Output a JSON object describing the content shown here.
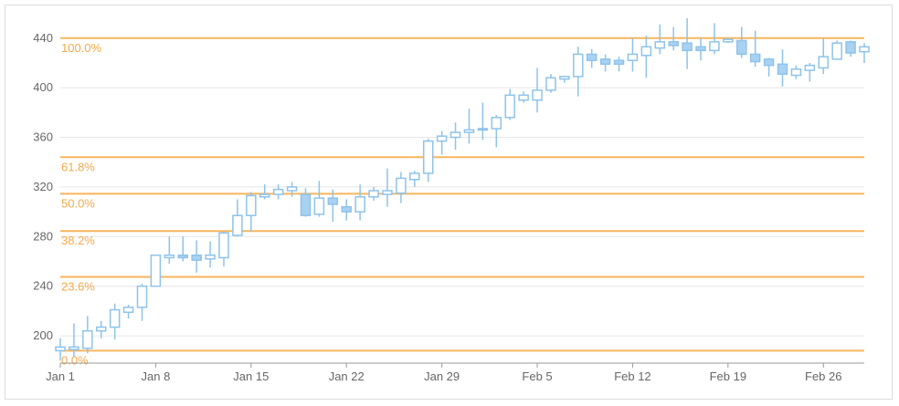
{
  "chart_data": {
    "type": "candlestick",
    "title": "",
    "xlabel": "",
    "ylabel": "",
    "ylim": [
      178,
      456
    ],
    "yticks": [
      "200",
      "240",
      "280",
      "320",
      "360",
      "400",
      "440"
    ],
    "xticks": [
      {
        "day": 1,
        "label": "Jan 1"
      },
      {
        "day": 8,
        "label": "Jan 8"
      },
      {
        "day": 15,
        "label": "Jan 15"
      },
      {
        "day": 22,
        "label": "Jan 22"
      },
      {
        "day": 29,
        "label": "Jan 29"
      },
      {
        "day": 36,
        "label": "Feb 5"
      },
      {
        "day": 43,
        "label": "Feb 12"
      },
      {
        "day": 50,
        "label": "Feb 19"
      },
      {
        "day": 57,
        "label": "Feb 26"
      }
    ],
    "grid": true,
    "colors": {
      "candle": "#8ec3ea",
      "candle_fill": "#a9d2f2",
      "fib_line": "#f7b55c",
      "fib_label": "#f5a94a",
      "grid": "#e6e6e6",
      "axis": "#999999"
    },
    "fibonacci": [
      {
        "label": "100.0%",
        "value": 440
      },
      {
        "label": "61.8%",
        "value": 344
      },
      {
        "label": "50.0%",
        "value": 314.5
      },
      {
        "label": "38.2%",
        "value": 284.5
      },
      {
        "label": "23.6%",
        "value": 247.5
      },
      {
        "label": "0.0%",
        "value": 188
      }
    ],
    "candles": [
      {
        "date": "Jan 1",
        "open": 188,
        "high": 198,
        "low": 180,
        "close": 191
      },
      {
        "date": "Jan 2",
        "open": 189,
        "high": 210,
        "low": 183,
        "close": 191
      },
      {
        "date": "Jan 3",
        "open": 190,
        "high": 216,
        "low": 186,
        "close": 204
      },
      {
        "date": "Jan 4",
        "open": 204,
        "high": 212,
        "low": 198,
        "close": 207
      },
      {
        "date": "Jan 5",
        "open": 207,
        "high": 226,
        "low": 197,
        "close": 221
      },
      {
        "date": "Jan 6",
        "open": 219,
        "high": 225,
        "low": 214,
        "close": 223
      },
      {
        "date": "Jan 7",
        "open": 223,
        "high": 242,
        "low": 212,
        "close": 240
      },
      {
        "date": "Jan 8",
        "open": 240,
        "high": 265,
        "low": 240,
        "close": 265
      },
      {
        "date": "Jan 9",
        "open": 263,
        "high": 280,
        "low": 258,
        "close": 265
      },
      {
        "date": "Jan 10",
        "open": 265,
        "high": 280,
        "low": 260,
        "close": 263
      },
      {
        "date": "Jan 11",
        "open": 265,
        "high": 277,
        "low": 251,
        "close": 261
      },
      {
        "date": "Jan 12",
        "open": 262,
        "high": 276,
        "low": 255,
        "close": 265
      },
      {
        "date": "Jan 13",
        "open": 263,
        "high": 284,
        "low": 256,
        "close": 283
      },
      {
        "date": "Jan 14",
        "open": 281,
        "high": 310,
        "low": 280,
        "close": 297
      },
      {
        "date": "Jan 15",
        "open": 297,
        "high": 316,
        "low": 284,
        "close": 313
      },
      {
        "date": "Jan 16",
        "open": 312,
        "high": 322,
        "low": 310,
        "close": 314
      },
      {
        "date": "Jan 17",
        "open": 314,
        "high": 322,
        "low": 310,
        "close": 318
      },
      {
        "date": "Jan 18",
        "open": 317,
        "high": 324,
        "low": 312,
        "close": 320
      },
      {
        "date": "Jan 19",
        "open": 314,
        "high": 319,
        "low": 296,
        "close": 297
      },
      {
        "date": "Jan 20",
        "open": 298,
        "high": 325,
        "low": 296,
        "close": 311
      },
      {
        "date": "Jan 21",
        "open": 311,
        "high": 318,
        "low": 292,
        "close": 306
      },
      {
        "date": "Jan 22",
        "open": 304,
        "high": 310,
        "low": 293,
        "close": 300
      },
      {
        "date": "Jan 23",
        "open": 300,
        "high": 322,
        "low": 293,
        "close": 312
      },
      {
        "date": "Jan 24",
        "open": 312,
        "high": 320,
        "low": 309,
        "close": 317
      },
      {
        "date": "Jan 25",
        "open": 314,
        "high": 335,
        "low": 304,
        "close": 317
      },
      {
        "date": "Jan 26",
        "open": 315,
        "high": 332,
        "low": 307,
        "close": 327
      },
      {
        "date": "Jan 27",
        "open": 326,
        "high": 333,
        "low": 320,
        "close": 331
      },
      {
        "date": "Jan 28",
        "open": 331,
        "high": 359,
        "low": 324,
        "close": 357
      },
      {
        "date": "Jan 29",
        "open": 357,
        "high": 365,
        "low": 346,
        "close": 361
      },
      {
        "date": "Jan 30",
        "open": 360,
        "high": 372,
        "low": 350,
        "close": 364
      },
      {
        "date": "Jan 31",
        "open": 364,
        "high": 383,
        "low": 355,
        "close": 366
      },
      {
        "date": "Feb 1",
        "open": 366,
        "high": 388,
        "low": 358,
        "close": 367
      },
      {
        "date": "Feb 2",
        "open": 367,
        "high": 378,
        "low": 352,
        "close": 376
      },
      {
        "date": "Feb 3",
        "open": 376,
        "high": 399,
        "low": 374,
        "close": 394
      },
      {
        "date": "Feb 4",
        "open": 390,
        "high": 397,
        "low": 388,
        "close": 394
      },
      {
        "date": "Feb 5",
        "open": 390,
        "high": 416,
        "low": 380,
        "close": 398
      },
      {
        "date": "Feb 6",
        "open": 398,
        "high": 411,
        "low": 396,
        "close": 408
      },
      {
        "date": "Feb 7",
        "open": 407,
        "high": 409,
        "low": 404,
        "close": 409
      },
      {
        "date": "Feb 8",
        "open": 409,
        "high": 433,
        "low": 393,
        "close": 427
      },
      {
        "date": "Feb 9",
        "open": 427,
        "high": 431,
        "low": 416,
        "close": 422
      },
      {
        "date": "Feb 10",
        "open": 423,
        "high": 427,
        "low": 413,
        "close": 419
      },
      {
        "date": "Feb 11",
        "open": 422,
        "high": 425,
        "low": 413,
        "close": 419
      },
      {
        "date": "Feb 12",
        "open": 422,
        "high": 440,
        "low": 413,
        "close": 427
      },
      {
        "date": "Feb 13",
        "open": 426,
        "high": 442,
        "low": 408,
        "close": 433
      },
      {
        "date": "Feb 14",
        "open": 432,
        "high": 451,
        "low": 427,
        "close": 437
      },
      {
        "date": "Feb 15",
        "open": 437,
        "high": 449,
        "low": 430,
        "close": 434
      },
      {
        "date": "Feb 16",
        "open": 436,
        "high": 456,
        "low": 415,
        "close": 430
      },
      {
        "date": "Feb 17",
        "open": 433,
        "high": 440,
        "low": 422,
        "close": 430
      },
      {
        "date": "Feb 18",
        "open": 430,
        "high": 452,
        "low": 427,
        "close": 437
      },
      {
        "date": "Feb 19",
        "open": 437,
        "high": 440,
        "low": 436,
        "close": 439
      },
      {
        "date": "Feb 20",
        "open": 438,
        "high": 449,
        "low": 424,
        "close": 427
      },
      {
        "date": "Feb 21",
        "open": 427,
        "high": 446,
        "low": 417,
        "close": 421
      },
      {
        "date": "Feb 22",
        "open": 423,
        "high": 424,
        "low": 409,
        "close": 418
      },
      {
        "date": "Feb 23",
        "open": 419,
        "high": 431,
        "low": 401,
        "close": 411
      },
      {
        "date": "Feb 24",
        "open": 410,
        "high": 418,
        "low": 407,
        "close": 415
      },
      {
        "date": "Feb 25",
        "open": 414,
        "high": 420,
        "low": 405,
        "close": 418
      },
      {
        "date": "Feb 26",
        "open": 416,
        "high": 440,
        "low": 411,
        "close": 425
      },
      {
        "date": "Feb 27",
        "open": 423,
        "high": 438,
        "low": 423,
        "close": 436
      },
      {
        "date": "Feb 28",
        "open": 437,
        "high": 438,
        "low": 425,
        "close": 428
      },
      {
        "date": "Mar 1",
        "open": 429,
        "high": 436,
        "low": 420,
        "close": 433
      }
    ]
  }
}
